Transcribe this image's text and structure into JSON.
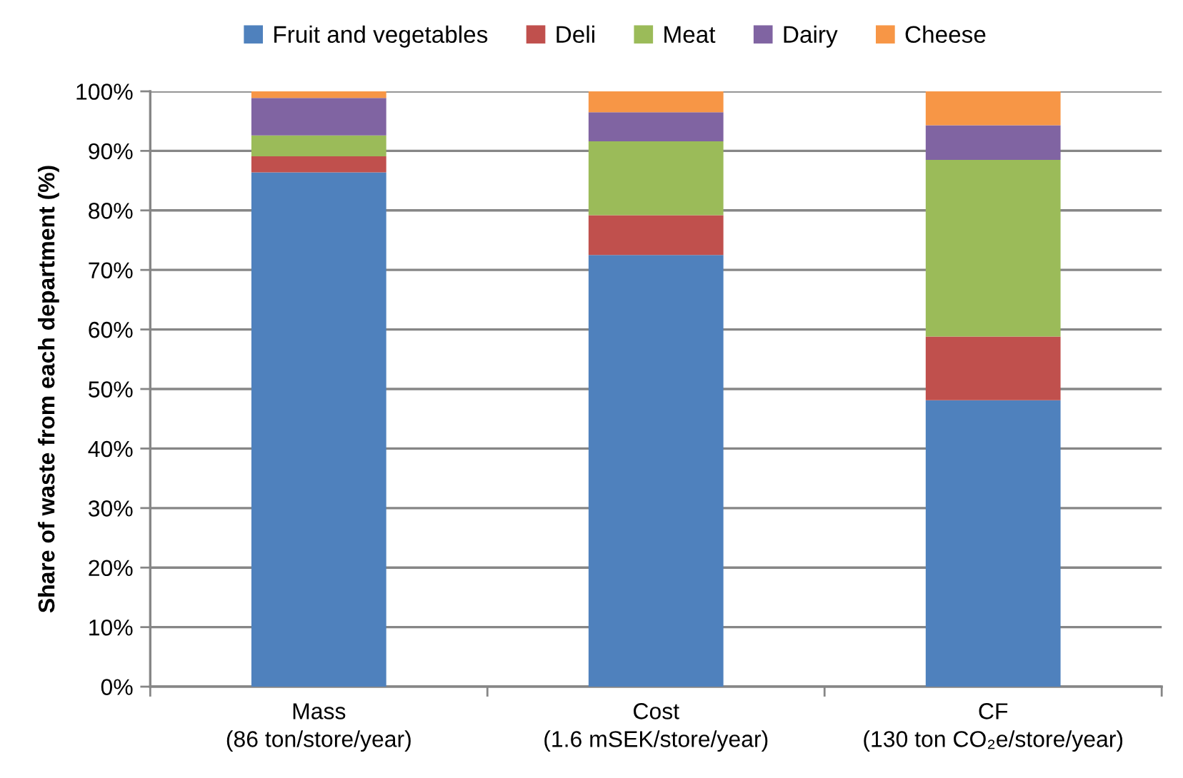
{
  "chart_data": {
    "type": "bar",
    "stacked": true,
    "categories": [
      "Mass\n(86 ton/store/year)",
      "Cost\n(1.6 mSEK/store/year)",
      "CF\n(130 ton CO₂e/store/year)"
    ],
    "series": [
      {
        "name": "Fruit and vegetables",
        "color": "#4f81bd",
        "values": [
          86.4,
          72.5,
          48.1
        ]
      },
      {
        "name": "Deli",
        "color": "#c0504d",
        "values": [
          2.7,
          6.7,
          10.7
        ]
      },
      {
        "name": "Meat",
        "color": "#9bbb59",
        "values": [
          3.5,
          12.4,
          29.7
        ]
      },
      {
        "name": "Dairy",
        "color": "#8064a2",
        "values": [
          6.3,
          4.9,
          5.8
        ]
      },
      {
        "name": "Cheese",
        "color": "#f79646",
        "values": [
          1.1,
          3.5,
          5.7
        ]
      }
    ],
    "ylabel": "Share of waste from each department (%)",
    "ylim": [
      0,
      100
    ],
    "yticks": [
      {
        "value": 0,
        "label": "0%"
      },
      {
        "value": 10,
        "label": "10%"
      },
      {
        "value": 20,
        "label": "20%"
      },
      {
        "value": 30,
        "label": "30%"
      },
      {
        "value": 40,
        "label": "40%"
      },
      {
        "value": 50,
        "label": "50%"
      },
      {
        "value": 60,
        "label": "60%"
      },
      {
        "value": 70,
        "label": "70%"
      },
      {
        "value": 80,
        "label": "80%"
      },
      {
        "value": 90,
        "label": "90%"
      },
      {
        "value": 100,
        "label": "100%"
      }
    ],
    "grid": "y",
    "legend": "top"
  }
}
